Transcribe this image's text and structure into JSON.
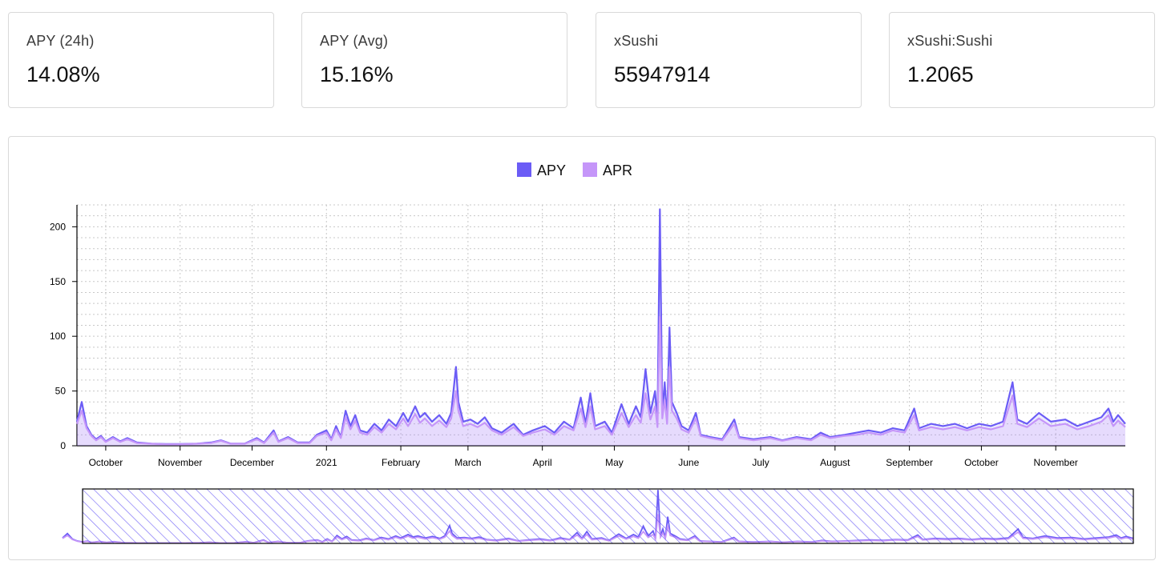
{
  "stats": [
    {
      "label": "APY (24h)",
      "value": "14.08%"
    },
    {
      "label": "APY (Avg)",
      "value": "15.16%"
    },
    {
      "label": "xSushi",
      "value": "55947914"
    },
    {
      "label": "xSushi:Sushi",
      "value": "1.2065"
    }
  ],
  "colors": {
    "apy": "#6b5cf6",
    "apr": "#c596f9",
    "grid": "#c8c8c8",
    "axis": "#000000"
  },
  "chart_data": {
    "type": "area",
    "legend": [
      "APY",
      "APR"
    ],
    "legend_position": "top-center",
    "grid": true,
    "ylim": [
      0,
      220
    ],
    "yticks": [
      0,
      50,
      100,
      150,
      200
    ],
    "xlim": [
      "2020-09-19",
      "2021-11-30"
    ],
    "xticks": [
      {
        "date": "2020-10-01",
        "label": "October"
      },
      {
        "date": "2020-11-01",
        "label": "November"
      },
      {
        "date": "2020-12-01",
        "label": "December"
      },
      {
        "date": "2021-01-01",
        "label": "2021"
      },
      {
        "date": "2021-02-01",
        "label": "February"
      },
      {
        "date": "2021-03-01",
        "label": "March"
      },
      {
        "date": "2021-04-01",
        "label": "April"
      },
      {
        "date": "2021-05-01",
        "label": "May"
      },
      {
        "date": "2021-06-01",
        "label": "June"
      },
      {
        "date": "2021-07-01",
        "label": "July"
      },
      {
        "date": "2021-08-01",
        "label": "August"
      },
      {
        "date": "2021-09-01",
        "label": "September"
      },
      {
        "date": "2021-10-01",
        "label": "October"
      },
      {
        "date": "2021-11-01",
        "label": "November"
      }
    ],
    "series": [
      {
        "name": "APY",
        "points": [
          [
            "2020-09-19",
            22
          ],
          [
            "2020-09-21",
            40
          ],
          [
            "2020-09-23",
            18
          ],
          [
            "2020-09-25",
            10
          ],
          [
            "2020-09-27",
            6
          ],
          [
            "2020-09-29",
            9
          ],
          [
            "2020-10-01",
            4
          ],
          [
            "2020-10-04",
            8
          ],
          [
            "2020-10-07",
            4
          ],
          [
            "2020-10-10",
            7
          ],
          [
            "2020-10-14",
            3
          ],
          [
            "2020-10-20",
            2
          ],
          [
            "2020-10-26",
            1.5
          ],
          [
            "2020-11-01",
            1.5
          ],
          [
            "2020-11-08",
            2
          ],
          [
            "2020-11-14",
            3
          ],
          [
            "2020-11-18",
            5
          ],
          [
            "2020-11-22",
            2
          ],
          [
            "2020-11-28",
            2
          ],
          [
            "2020-12-03",
            7
          ],
          [
            "2020-12-06",
            3
          ],
          [
            "2020-12-10",
            14
          ],
          [
            "2020-12-12",
            4
          ],
          [
            "2020-12-16",
            8
          ],
          [
            "2020-12-20",
            3
          ],
          [
            "2020-12-25",
            3
          ],
          [
            "2020-12-28",
            10
          ],
          [
            "2021-01-01",
            14
          ],
          [
            "2021-01-03",
            6
          ],
          [
            "2021-01-05",
            18
          ],
          [
            "2021-01-07",
            8
          ],
          [
            "2021-01-09",
            32
          ],
          [
            "2021-01-11",
            18
          ],
          [
            "2021-01-13",
            28
          ],
          [
            "2021-01-15",
            14
          ],
          [
            "2021-01-18",
            12
          ],
          [
            "2021-01-21",
            20
          ],
          [
            "2021-01-24",
            14
          ],
          [
            "2021-01-27",
            24
          ],
          [
            "2021-01-30",
            18
          ],
          [
            "2021-02-02",
            30
          ],
          [
            "2021-02-04",
            22
          ],
          [
            "2021-02-07",
            36
          ],
          [
            "2021-02-09",
            26
          ],
          [
            "2021-02-11",
            30
          ],
          [
            "2021-02-14",
            22
          ],
          [
            "2021-02-17",
            28
          ],
          [
            "2021-02-20",
            20
          ],
          [
            "2021-02-22",
            30
          ],
          [
            "2021-02-24",
            72
          ],
          [
            "2021-02-25",
            40
          ],
          [
            "2021-02-27",
            22
          ],
          [
            "2021-03-02",
            24
          ],
          [
            "2021-03-05",
            20
          ],
          [
            "2021-03-08",
            26
          ],
          [
            "2021-03-11",
            16
          ],
          [
            "2021-03-15",
            12
          ],
          [
            "2021-03-20",
            20
          ],
          [
            "2021-03-24",
            10
          ],
          [
            "2021-03-28",
            14
          ],
          [
            "2021-04-02",
            18
          ],
          [
            "2021-04-06",
            12
          ],
          [
            "2021-04-10",
            22
          ],
          [
            "2021-04-14",
            16
          ],
          [
            "2021-04-17",
            44
          ],
          [
            "2021-04-19",
            20
          ],
          [
            "2021-04-21",
            48
          ],
          [
            "2021-04-23",
            18
          ],
          [
            "2021-04-27",
            22
          ],
          [
            "2021-04-30",
            12
          ],
          [
            "2021-05-04",
            38
          ],
          [
            "2021-05-07",
            20
          ],
          [
            "2021-05-10",
            36
          ],
          [
            "2021-05-12",
            26
          ],
          [
            "2021-05-14",
            70
          ],
          [
            "2021-05-16",
            30
          ],
          [
            "2021-05-18",
            50
          ],
          [
            "2021-05-19",
            20
          ],
          [
            "2021-05-20",
            216
          ],
          [
            "2021-05-21",
            30
          ],
          [
            "2021-05-22",
            58
          ],
          [
            "2021-05-23",
            24
          ],
          [
            "2021-05-24",
            108
          ],
          [
            "2021-05-25",
            40
          ],
          [
            "2021-05-27",
            30
          ],
          [
            "2021-05-29",
            18
          ],
          [
            "2021-06-01",
            14
          ],
          [
            "2021-06-04",
            30
          ],
          [
            "2021-06-06",
            10
          ],
          [
            "2021-06-10",
            8
          ],
          [
            "2021-06-15",
            6
          ],
          [
            "2021-06-20",
            24
          ],
          [
            "2021-06-22",
            8
          ],
          [
            "2021-06-28",
            6
          ],
          [
            "2021-07-05",
            8
          ],
          [
            "2021-07-10",
            5
          ],
          [
            "2021-07-16",
            8
          ],
          [
            "2021-07-22",
            6
          ],
          [
            "2021-07-26",
            12
          ],
          [
            "2021-07-30",
            8
          ],
          [
            "2021-08-05",
            10
          ],
          [
            "2021-08-10",
            12
          ],
          [
            "2021-08-15",
            14
          ],
          [
            "2021-08-20",
            12
          ],
          [
            "2021-08-25",
            16
          ],
          [
            "2021-08-30",
            14
          ],
          [
            "2021-09-03",
            34
          ],
          [
            "2021-09-05",
            16
          ],
          [
            "2021-09-10",
            20
          ],
          [
            "2021-09-15",
            18
          ],
          [
            "2021-09-20",
            20
          ],
          [
            "2021-09-25",
            16
          ],
          [
            "2021-09-30",
            20
          ],
          [
            "2021-10-05",
            18
          ],
          [
            "2021-10-10",
            22
          ],
          [
            "2021-10-14",
            58
          ],
          [
            "2021-10-16",
            24
          ],
          [
            "2021-10-20",
            20
          ],
          [
            "2021-10-25",
            30
          ],
          [
            "2021-10-30",
            22
          ],
          [
            "2021-11-05",
            24
          ],
          [
            "2021-11-10",
            18
          ],
          [
            "2021-11-15",
            22
          ],
          [
            "2021-11-20",
            26
          ],
          [
            "2021-11-23",
            34
          ],
          [
            "2021-11-25",
            22
          ],
          [
            "2021-11-27",
            28
          ],
          [
            "2021-11-30",
            20
          ]
        ]
      },
      {
        "name": "APR",
        "points": [
          [
            "2020-09-19",
            20
          ],
          [
            "2020-09-21",
            32
          ],
          [
            "2020-09-23",
            16
          ],
          [
            "2020-09-25",
            9
          ],
          [
            "2020-09-27",
            5
          ],
          [
            "2020-09-29",
            8
          ],
          [
            "2020-10-01",
            3.5
          ],
          [
            "2020-10-04",
            7
          ],
          [
            "2020-10-07",
            3.5
          ],
          [
            "2020-10-10",
            6
          ],
          [
            "2020-10-14",
            2.5
          ],
          [
            "2020-10-20",
            1.8
          ],
          [
            "2020-10-26",
            1.3
          ],
          [
            "2020-11-01",
            1.3
          ],
          [
            "2020-11-08",
            1.8
          ],
          [
            "2020-11-14",
            2.5
          ],
          [
            "2020-11-18",
            4.5
          ],
          [
            "2020-11-22",
            1.8
          ],
          [
            "2020-11-28",
            1.8
          ],
          [
            "2020-12-03",
            6
          ],
          [
            "2020-12-06",
            2.5
          ],
          [
            "2020-12-10",
            12
          ],
          [
            "2020-12-12",
            3.5
          ],
          [
            "2020-12-16",
            7
          ],
          [
            "2020-12-20",
            2.5
          ],
          [
            "2020-12-25",
            2.5
          ],
          [
            "2020-12-28",
            9
          ],
          [
            "2021-01-01",
            12
          ],
          [
            "2021-01-03",
            5
          ],
          [
            "2021-01-05",
            15
          ],
          [
            "2021-01-07",
            7
          ],
          [
            "2021-01-09",
            26
          ],
          [
            "2021-01-11",
            15
          ],
          [
            "2021-01-13",
            23
          ],
          [
            "2021-01-15",
            12
          ],
          [
            "2021-01-18",
            10
          ],
          [
            "2021-01-21",
            17
          ],
          [
            "2021-01-24",
            12
          ],
          [
            "2021-01-27",
            20
          ],
          [
            "2021-01-30",
            15
          ],
          [
            "2021-02-02",
            25
          ],
          [
            "2021-02-04",
            18
          ],
          [
            "2021-02-07",
            29
          ],
          [
            "2021-02-09",
            21
          ],
          [
            "2021-02-11",
            25
          ],
          [
            "2021-02-14",
            18
          ],
          [
            "2021-02-17",
            23
          ],
          [
            "2021-02-20",
            17
          ],
          [
            "2021-02-22",
            25
          ],
          [
            "2021-02-24",
            50
          ],
          [
            "2021-02-25",
            32
          ],
          [
            "2021-02-27",
            18
          ],
          [
            "2021-03-02",
            20
          ],
          [
            "2021-03-05",
            17
          ],
          [
            "2021-03-08",
            21
          ],
          [
            "2021-03-11",
            14
          ],
          [
            "2021-03-15",
            10
          ],
          [
            "2021-03-20",
            17
          ],
          [
            "2021-03-24",
            9
          ],
          [
            "2021-03-28",
            12
          ],
          [
            "2021-04-02",
            15
          ],
          [
            "2021-04-06",
            10
          ],
          [
            "2021-04-10",
            18
          ],
          [
            "2021-04-14",
            14
          ],
          [
            "2021-04-17",
            34
          ],
          [
            "2021-04-19",
            17
          ],
          [
            "2021-04-21",
            36
          ],
          [
            "2021-04-23",
            15
          ],
          [
            "2021-04-27",
            18
          ],
          [
            "2021-04-30",
            10
          ],
          [
            "2021-05-04",
            30
          ],
          [
            "2021-05-07",
            17
          ],
          [
            "2021-05-10",
            28
          ],
          [
            "2021-05-12",
            21
          ],
          [
            "2021-05-14",
            48
          ],
          [
            "2021-05-16",
            24
          ],
          [
            "2021-05-18",
            36
          ],
          [
            "2021-05-19",
            17
          ],
          [
            "2021-05-20",
            118
          ],
          [
            "2021-05-21",
            25
          ],
          [
            "2021-05-22",
            42
          ],
          [
            "2021-05-23",
            20
          ],
          [
            "2021-05-24",
            72
          ],
          [
            "2021-05-25",
            32
          ],
          [
            "2021-05-27",
            25
          ],
          [
            "2021-05-29",
            15
          ],
          [
            "2021-06-01",
            12
          ],
          [
            "2021-06-04",
            25
          ],
          [
            "2021-06-06",
            9
          ],
          [
            "2021-06-10",
            7
          ],
          [
            "2021-06-15",
            5
          ],
          [
            "2021-06-20",
            20
          ],
          [
            "2021-06-22",
            7
          ],
          [
            "2021-06-28",
            5
          ],
          [
            "2021-07-05",
            7
          ],
          [
            "2021-07-10",
            4.5
          ],
          [
            "2021-07-16",
            7
          ],
          [
            "2021-07-22",
            5
          ],
          [
            "2021-07-26",
            10
          ],
          [
            "2021-07-30",
            7
          ],
          [
            "2021-08-05",
            9
          ],
          [
            "2021-08-10",
            10
          ],
          [
            "2021-08-15",
            12
          ],
          [
            "2021-08-20",
            10
          ],
          [
            "2021-08-25",
            14
          ],
          [
            "2021-08-30",
            12
          ],
          [
            "2021-09-03",
            28
          ],
          [
            "2021-09-05",
            14
          ],
          [
            "2021-09-10",
            17
          ],
          [
            "2021-09-15",
            15
          ],
          [
            "2021-09-20",
            17
          ],
          [
            "2021-09-25",
            14
          ],
          [
            "2021-09-30",
            17
          ],
          [
            "2021-10-05",
            15
          ],
          [
            "2021-10-10",
            18
          ],
          [
            "2021-10-14",
            46
          ],
          [
            "2021-10-16",
            20
          ],
          [
            "2021-10-20",
            17
          ],
          [
            "2021-10-25",
            25
          ],
          [
            "2021-10-30",
            18
          ],
          [
            "2021-11-05",
            20
          ],
          [
            "2021-11-10",
            15
          ],
          [
            "2021-11-15",
            18
          ],
          [
            "2021-11-20",
            22
          ],
          [
            "2021-11-23",
            28
          ],
          [
            "2021-11-25",
            18
          ],
          [
            "2021-11-27",
            23
          ],
          [
            "2021-11-30",
            17
          ]
        ]
      }
    ]
  }
}
